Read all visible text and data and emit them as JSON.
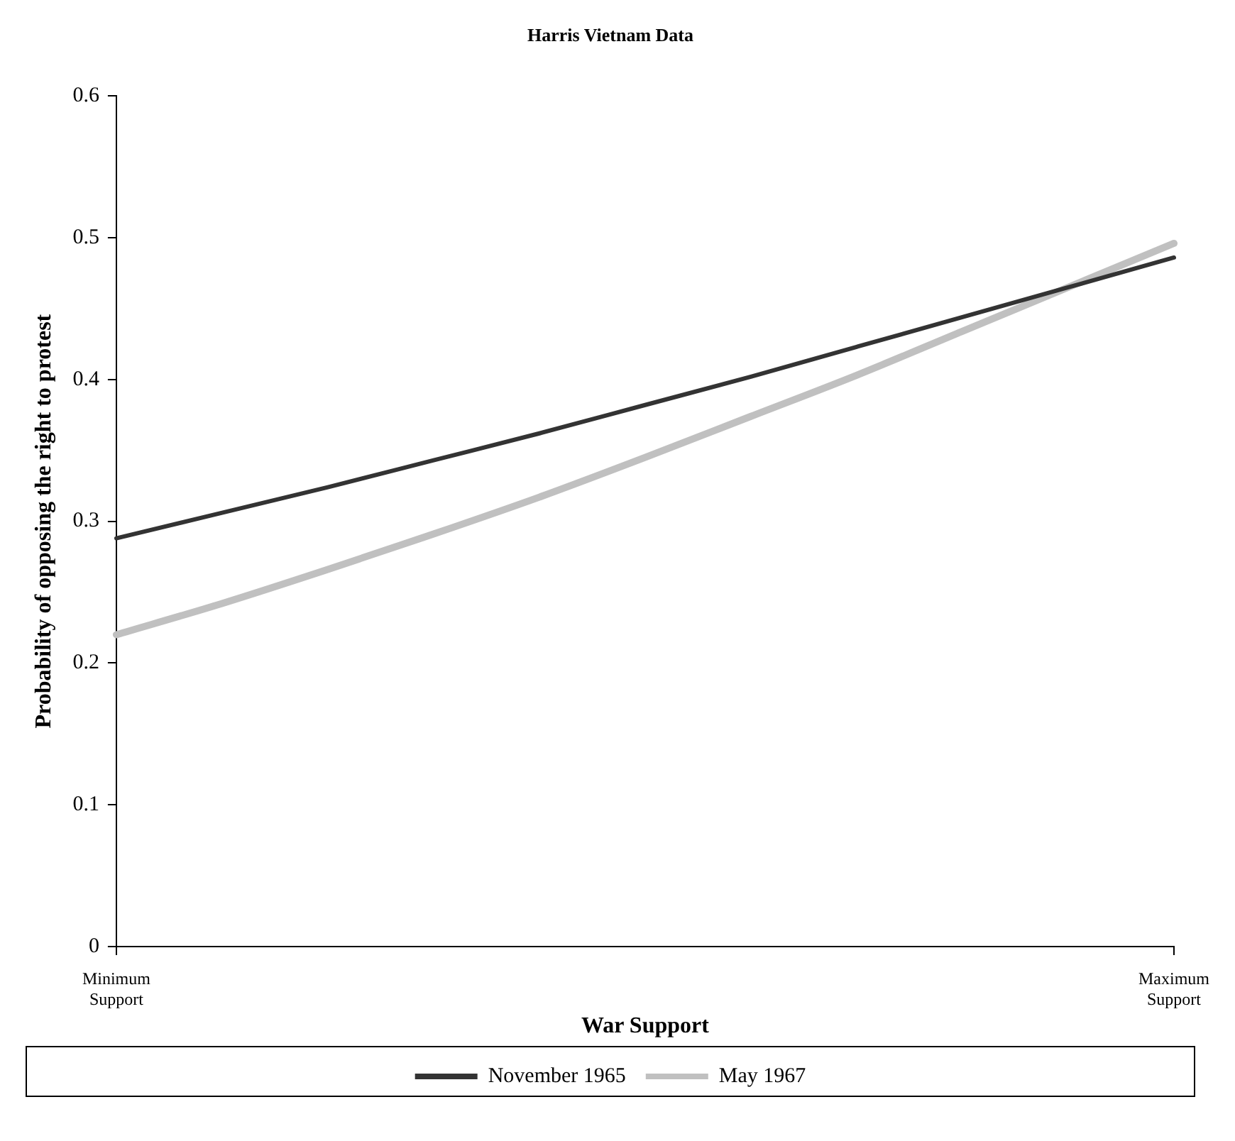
{
  "chart_data": {
    "type": "line",
    "title": "Harris Vietnam Data",
    "xlabel": "War Support",
    "ylabel": "Probability of opposing the right to protest",
    "categories": [
      "Minimum Support",
      null,
      null,
      null,
      null,
      null,
      null,
      null,
      null,
      null,
      "Maximum Support"
    ],
    "series": [
      {
        "name": "November 1965",
        "color": "#333333",
        "values": [
          0.288,
          0.306,
          0.324,
          0.343,
          0.362,
          0.382,
          0.402,
          0.423,
          0.444,
          0.465,
          0.486
        ]
      },
      {
        "name": "May 1967",
        "color": "#c0c0c0",
        "values": [
          0.22,
          0.242,
          0.266,
          0.291,
          0.317,
          0.345,
          0.374,
          0.403,
          0.434,
          0.465,
          0.496
        ]
      }
    ],
    "ylim": [
      0,
      0.6
    ],
    "yticks": [
      0,
      0.1,
      0.2,
      0.3,
      0.4,
      0.5,
      0.6
    ],
    "grid": false,
    "legend": "bottom",
    "marker": "none",
    "line_style": "solid"
  }
}
